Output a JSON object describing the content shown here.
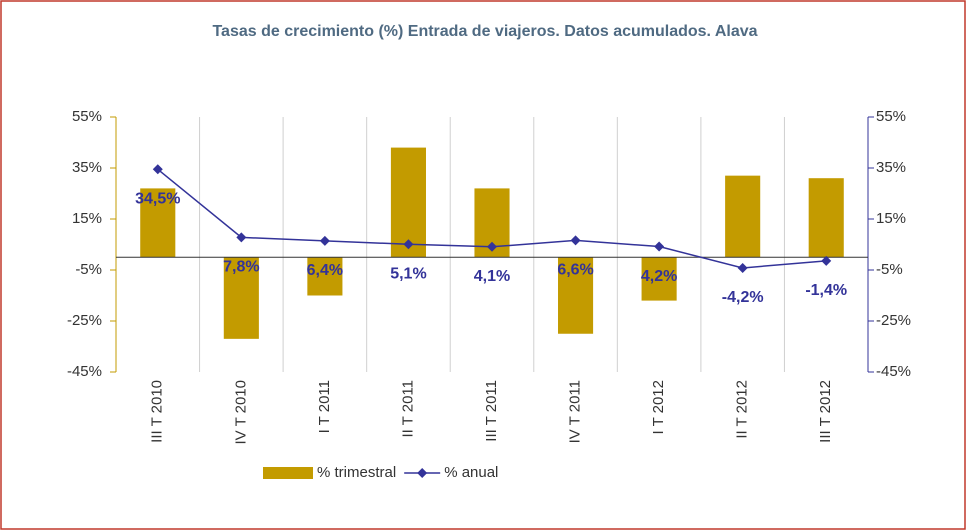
{
  "chart_data": {
    "type": "combo",
    "title": "Tasas de crecimiento (%) Entrada de viajeros. Datos acumulados. Alava",
    "categories": [
      "III T 2010",
      "IV T 2010",
      "I T 2011",
      "II T 2011",
      "III T 2011",
      "IV T 2011",
      "I T 2012",
      "II T 2012",
      "III T 2012"
    ],
    "series": [
      {
        "name": "% trimestral",
        "type": "bar",
        "color": "#c39b00",
        "values": [
          27,
          -32,
          -15,
          43,
          27,
          -30,
          -17,
          32,
          31
        ]
      },
      {
        "name": "% anual",
        "type": "line",
        "axis": "y2",
        "color": "#333399",
        "values": [
          34.5,
          7.8,
          6.4,
          5.1,
          4.1,
          6.6,
          4.2,
          -4.2,
          -1.4
        ],
        "value_labels": [
          "34,5%",
          "7,8%",
          "6,4%",
          "5,1%",
          "4,1%",
          "6,6%",
          "4,2%",
          "-4,2%",
          "-1,4%"
        ]
      }
    ],
    "ylim": [
      -45,
      55
    ],
    "yticks": [
      {
        "value": -45,
        "label": "-45%"
      },
      {
        "value": -25,
        "label": "-25%"
      },
      {
        "value": -5,
        "label": "-5%"
      },
      {
        "value": 15,
        "label": "15%"
      },
      {
        "value": 35,
        "label": "35%"
      },
      {
        "value": 55,
        "label": "55%"
      }
    ],
    "y2lim": [
      -45,
      55
    ],
    "y2ticks": [
      {
        "value": -45,
        "label": "-45%"
      },
      {
        "value": -25,
        "label": "-25%"
      },
      {
        "value": -5,
        "label": "-5%"
      },
      {
        "value": 15,
        "label": "15%"
      },
      {
        "value": 35,
        "label": "35%"
      },
      {
        "value": 55,
        "label": "55%"
      }
    ],
    "grid": true,
    "legend": "bottom"
  }
}
